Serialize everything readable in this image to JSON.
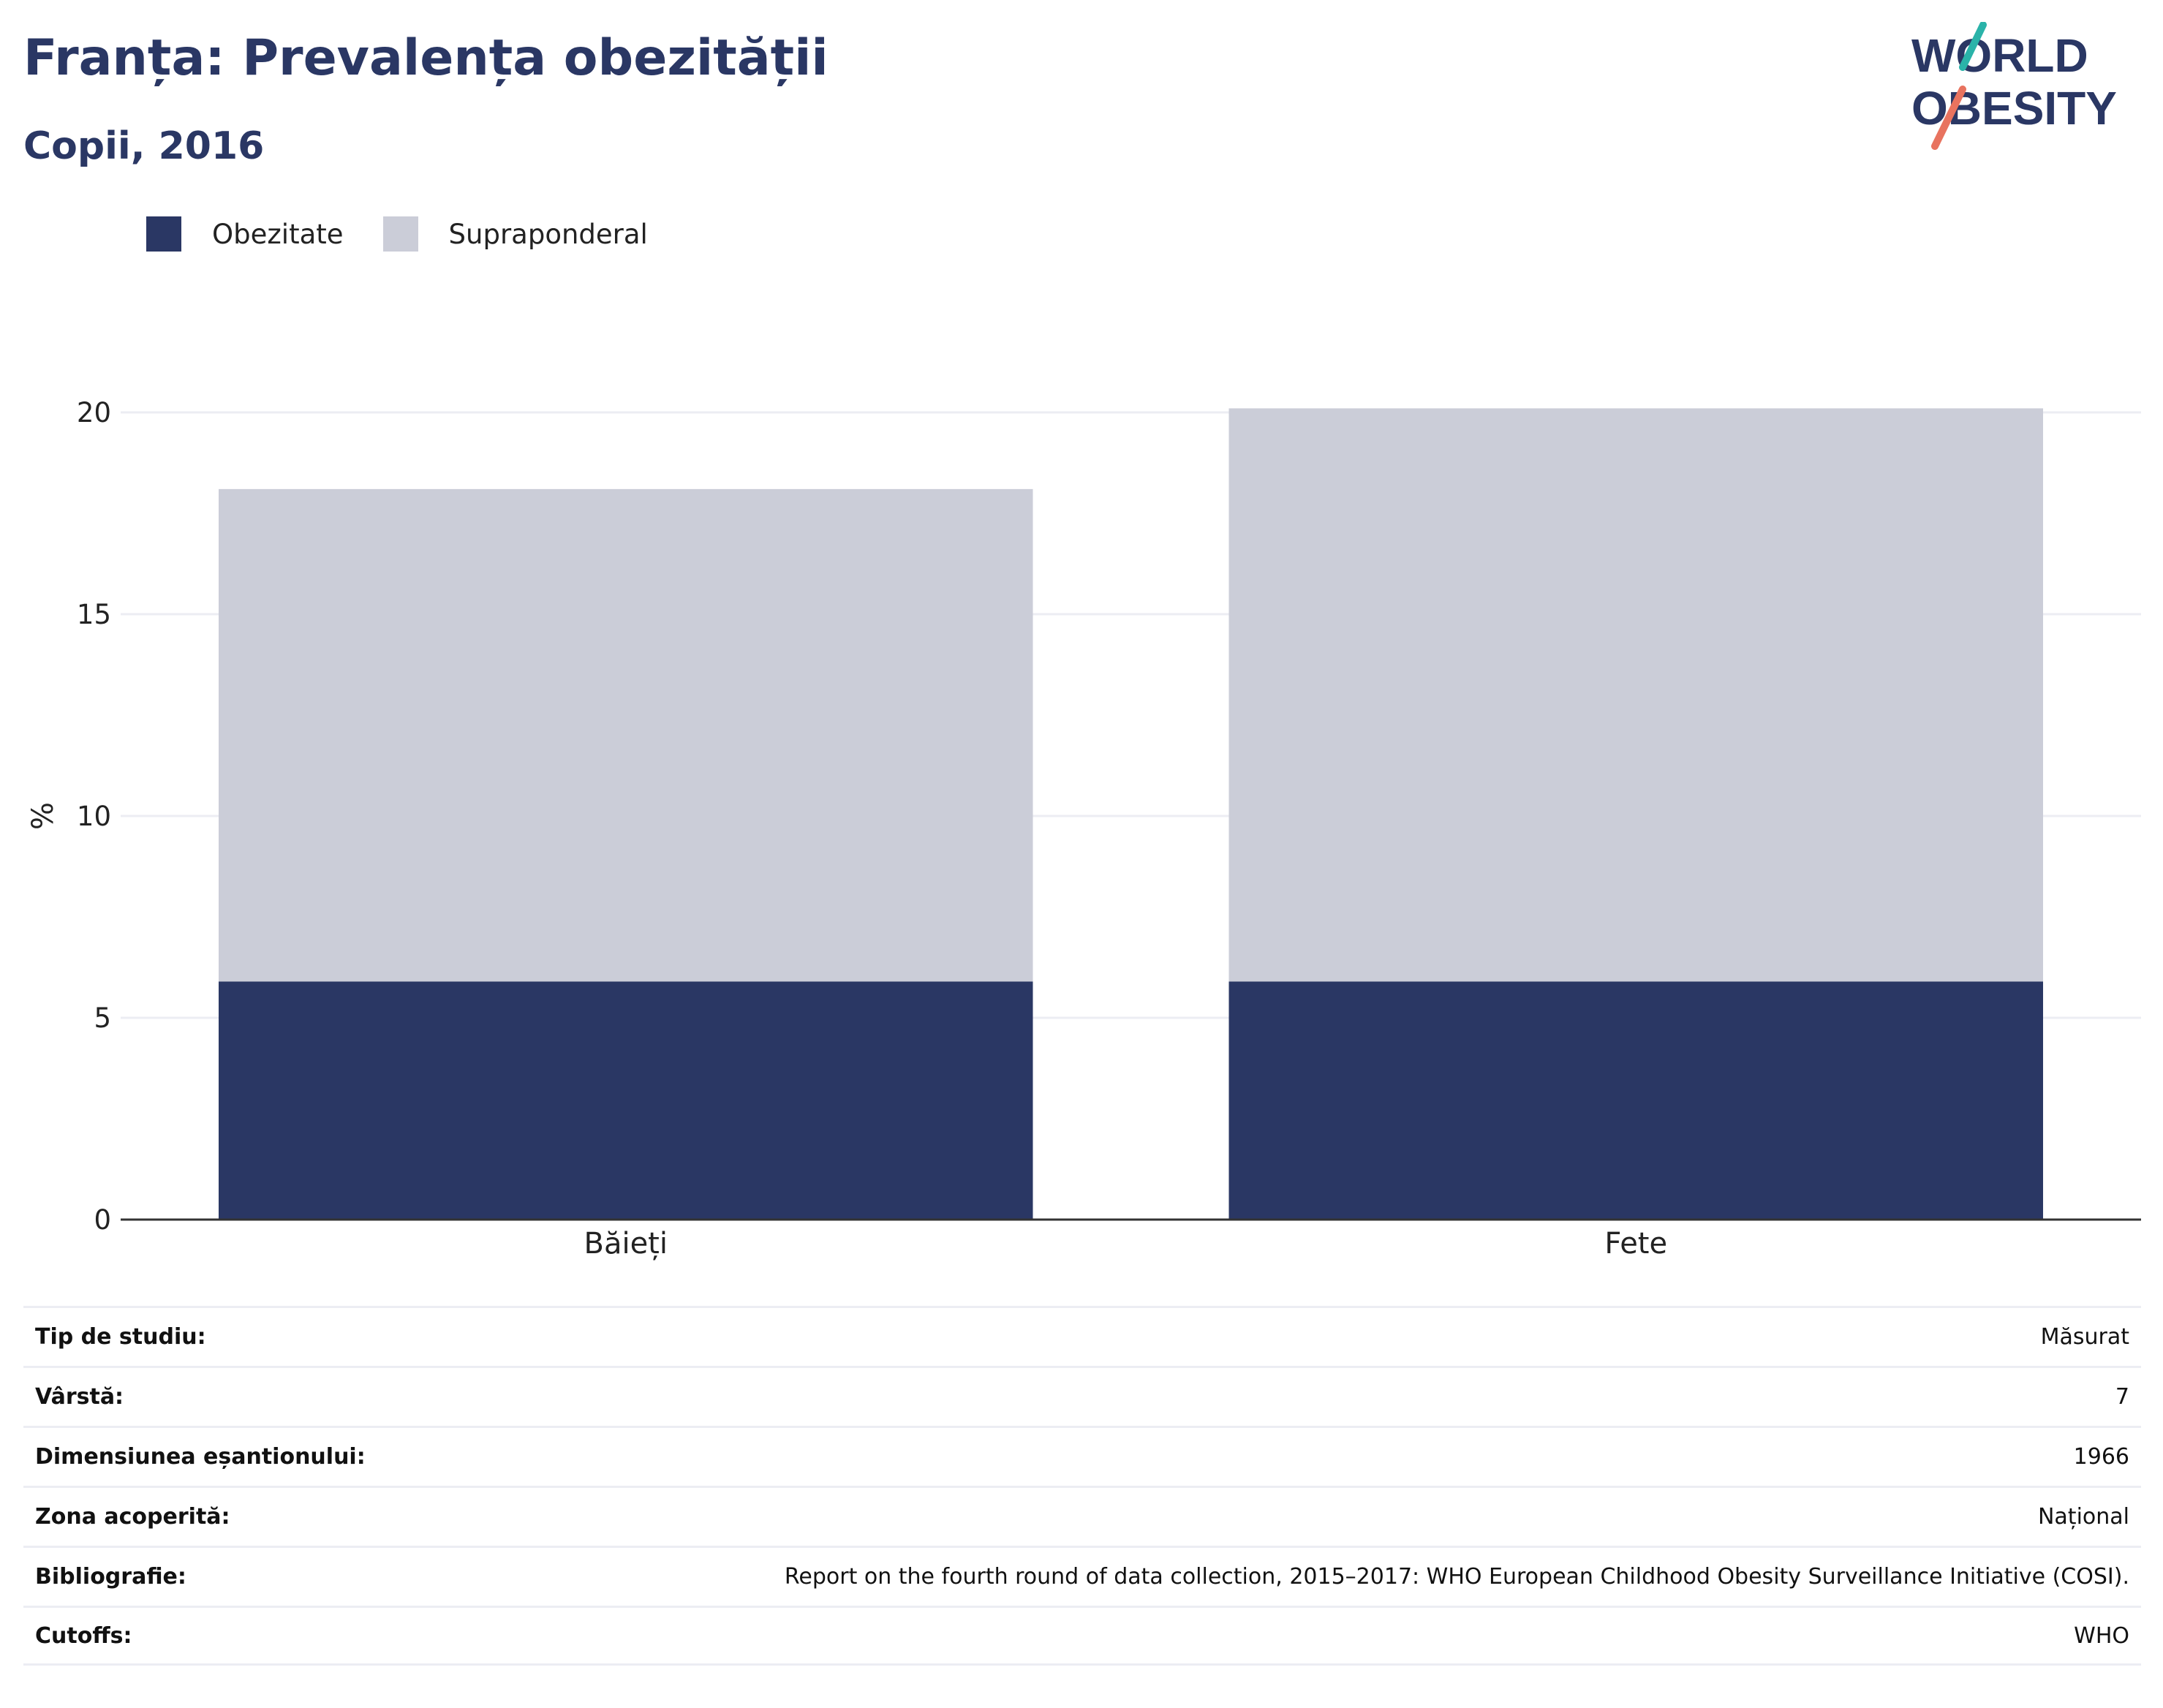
{
  "header": {
    "title": "Franța: Prevalența obezității",
    "subtitle": "Copii, 2016"
  },
  "logo": {
    "line1": "WORLD",
    "line2": "OBESITY"
  },
  "colors": {
    "obesity": "#2a3764",
    "overweight": "#cbcdd8",
    "accent_teal": "#2ab3a9",
    "accent_coral": "#e8735f",
    "grid": "#ecedf3"
  },
  "legend": [
    {
      "label": "Obezitate",
      "color": "#2a3764"
    },
    {
      "label": "Supraponderal",
      "color": "#cbcdd8"
    }
  ],
  "chart_data": {
    "type": "bar",
    "stacked": true,
    "categories": [
      "Băieți",
      "Fete"
    ],
    "series": [
      {
        "name": "Obezitate",
        "values": [
          5.9,
          5.9
        ]
      },
      {
        "name": "Supraponderal",
        "values": [
          12.2,
          14.2
        ]
      }
    ],
    "ylabel": "%",
    "ylim": [
      0,
      20
    ],
    "yticks": [
      0,
      5,
      10,
      15,
      20
    ],
    "grid": true,
    "legend_position": "top-left"
  },
  "meta": [
    {
      "key": "Tip de studiu:",
      "value": "Măsurat"
    },
    {
      "key": "Vârstă:",
      "value": "7"
    },
    {
      "key": "Dimensiunea eșantionului:",
      "value": "1966"
    },
    {
      "key": "Zona acoperită:",
      "value": "Național"
    },
    {
      "key": "Bibliografie:",
      "value": "Report on the fourth round of data collection, 2015–2017: WHO European Childhood Obesity Surveillance Initiative (COSI)."
    },
    {
      "key": "Cutoffs:",
      "value": "WHO"
    }
  ]
}
